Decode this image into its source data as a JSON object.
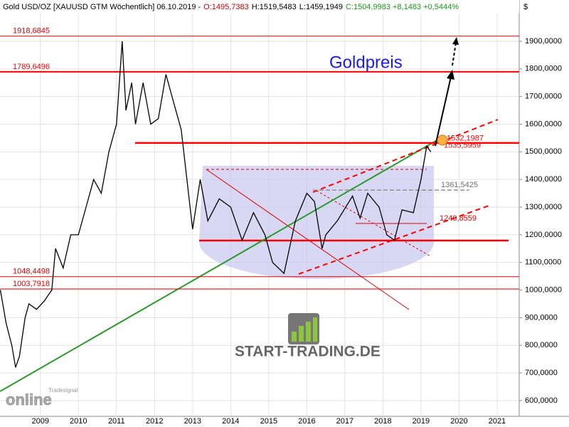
{
  "chart_data": {
    "type": "line",
    "title": "Gold USD/OZ [XAUUSD GTM  Wöchentlich] 06.10.2019 -",
    "ohlc": [
      {
        "text": "O:1495,7383",
        "color": "#d00000"
      },
      {
        "text": "H:1519,5483",
        "color": "#000000"
      },
      {
        "text": "L:1459,1949",
        "color": "#000000"
      },
      {
        "text": "C:1504,9983 +8,1483 +0,5444%",
        "color": "#1a9a1a"
      }
    ],
    "currency": "$",
    "annotation": "Goldpreis",
    "logo": "START-TRADING.DE",
    "watermark": "online",
    "watermark_small": "Tradesignal",
    "series": [
      {
        "name": "Gold",
        "color": "#000000",
        "x": [
          2008.45,
          2008.6,
          2008.75,
          2008.85,
          2008.95,
          2009.1,
          2009.2,
          2009.4,
          2009.6,
          2009.8,
          2009.9,
          2010.1,
          2010.3,
          2010.5,
          2010.7,
          2010.9,
          2011.1,
          2011.3,
          2011.5,
          2011.65,
          2011.75,
          2011.9,
          2012.0,
          2012.2,
          2012.4,
          2012.6,
          2012.8,
          2013.0,
          2013.2,
          2013.35,
          2013.5,
          2013.7,
          2013.9,
          2014.2,
          2014.5,
          2014.8,
          2015.1,
          2015.4,
          2015.6,
          2015.9,
          2016.2,
          2016.5,
          2016.7,
          2016.9,
          2017.0,
          2017.3,
          2017.7,
          2017.9,
          2018.1,
          2018.4,
          2018.6,
          2018.8,
          2019.0,
          2019.3,
          2019.5,
          2019.65,
          2019.76
        ],
        "values": [
          1000,
          880,
          800,
          720,
          760,
          900,
          950,
          930,
          960,
          1000,
          1150,
          1080,
          1200,
          1200,
          1300,
          1400,
          1350,
          1500,
          1600,
          1900,
          1650,
          1750,
          1600,
          1750,
          1600,
          1620,
          1780,
          1680,
          1580,
          1400,
          1220,
          1400,
          1250,
          1330,
          1300,
          1180,
          1280,
          1200,
          1100,
          1060,
          1250,
          1350,
          1320,
          1150,
          1200,
          1250,
          1340,
          1260,
          1350,
          1300,
          1200,
          1180,
          1290,
          1280,
          1400,
          1520,
          1500
        ]
      }
    ],
    "levels": [
      {
        "value": 1918.6845,
        "label": "1918,6845",
        "color": "#e00000",
        "width": 1
      },
      {
        "value": 1789.6496,
        "label": "1789,6496",
        "color": "#ff0000",
        "width": 2
      },
      {
        "value": 1048.4498,
        "label": "1048,4498",
        "color": "#e00000",
        "width": 1
      },
      {
        "value": 1003.7918,
        "label": "1003,7918",
        "color": "#e00000",
        "width": 1
      },
      {
        "value": 1532.1987,
        "label": "1532,1987",
        "color": "#ff0000",
        "width": 2.5
      },
      {
        "value": 1535.5959,
        "label": "1535,5959",
        "color": "#ff0000",
        "width": 0
      },
      {
        "value": 1361.5425,
        "label": "1361,5425",
        "color": "#909090",
        "width": 1.5
      },
      {
        "value": 1240.8559,
        "label": "1240,8559",
        "color": "#e00000",
        "width": 1
      }
    ],
    "xlim": [
      2008.44,
      2022.08
    ],
    "ylim": [
      543,
      2003
    ],
    "xticks": [
      {
        "value": 2009.5,
        "label": "2009"
      },
      {
        "value": 2010.5,
        "label": "2010"
      },
      {
        "value": 2011.5,
        "label": "2011"
      },
      {
        "value": 2012.5,
        "label": "2012"
      },
      {
        "value": 2013.5,
        "label": "2013"
      },
      {
        "value": 2014.5,
        "label": "2014"
      },
      {
        "value": 2015.5,
        "label": "2015"
      },
      {
        "value": 2016.5,
        "label": "2016"
      },
      {
        "value": 2017.5,
        "label": "2017"
      },
      {
        "value": 2018.5,
        "label": "2018"
      },
      {
        "value": 2019.5,
        "label": "2019"
      },
      {
        "value": 2020.5,
        "label": "2020"
      },
      {
        "value": 2021.5,
        "label": "2021"
      }
    ],
    "yticks": [
      {
        "value": 600,
        "label": "600,0000"
      },
      {
        "value": 700,
        "label": "700,0000"
      },
      {
        "value": 800,
        "label": "800,0000"
      },
      {
        "value": 900,
        "label": "900,0000"
      },
      {
        "value": 1000,
        "label": "1000,0000"
      },
      {
        "value": 1100,
        "label": "1100,0000"
      },
      {
        "value": 1200,
        "label": "1200,0000"
      },
      {
        "value": 1300,
        "label": "1300,0000"
      },
      {
        "value": 1400,
        "label": "1400,0000"
      },
      {
        "value": 1500,
        "label": "1500,0000"
      },
      {
        "value": 1600,
        "label": "1600,0000"
      },
      {
        "value": 1700,
        "label": "1700,0000"
      },
      {
        "value": 1800,
        "label": "1800,0000"
      },
      {
        "value": 1900,
        "label": "1900,0000"
      }
    ],
    "grid": true
  }
}
